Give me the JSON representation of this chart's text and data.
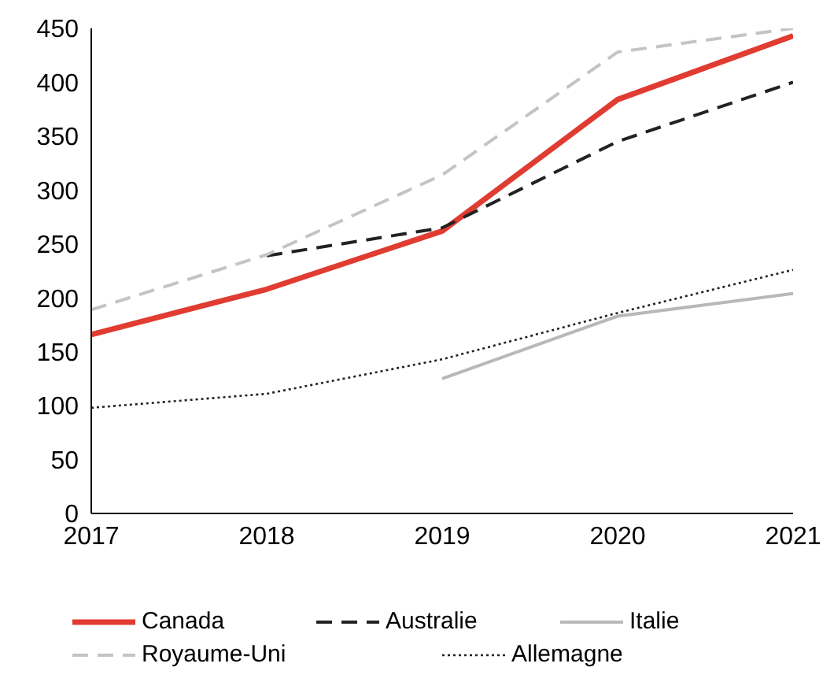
{
  "chart_data": {
    "type": "line",
    "x": [
      2017,
      2018,
      2019,
      2020,
      2021
    ],
    "xlim": [
      2017,
      2021
    ],
    "xticks": [
      2017,
      2018,
      2019,
      2020,
      2021
    ],
    "ylim": [
      0,
      450
    ],
    "yticks": [
      0,
      50,
      100,
      150,
      200,
      250,
      300,
      350,
      400,
      450
    ],
    "grid": false,
    "legend": "bottom",
    "marker": "none",
    "series": [
      {
        "name": "Canada",
        "color": "#e03c31",
        "line_style": "solid",
        "values": [
          166,
          208,
          262,
          384,
          443
        ]
      },
      {
        "name": "Australie",
        "color": "#222222",
        "line_style": "dashed",
        "values": [
          null,
          239,
          265,
          345,
          400
        ]
      },
      {
        "name": "Italie",
        "color": "#b8b8b8",
        "line_style": "solid",
        "values": [
          null,
          null,
          125,
          183,
          204
        ]
      },
      {
        "name": "Royaume-Uni",
        "color": "#c4c4c4",
        "line_style": "dashed",
        "values": [
          189,
          240,
          314,
          428,
          450
        ]
      },
      {
        "name": "Allemagne",
        "color": "#222222",
        "line_style": "dotted",
        "values": [
          98,
          111,
          143,
          186,
          226
        ]
      }
    ]
  }
}
